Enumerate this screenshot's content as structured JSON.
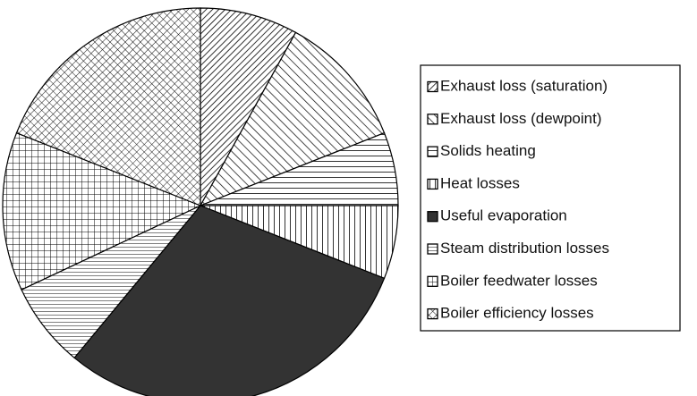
{
  "chart_data": {
    "type": "pie",
    "categories": [
      "Exhaust loss (saturation)",
      "Exhaust loss (dewpoint)",
      "Solids heating",
      "Heat losses",
      "Useful evaporation",
      "Steam distribution losses",
      "Boiler feedwater losses",
      "Boiler efficiency losses"
    ],
    "values": [
      8,
      11,
      6,
      6,
      30,
      7,
      13,
      19
    ],
    "legend": "right"
  }
}
